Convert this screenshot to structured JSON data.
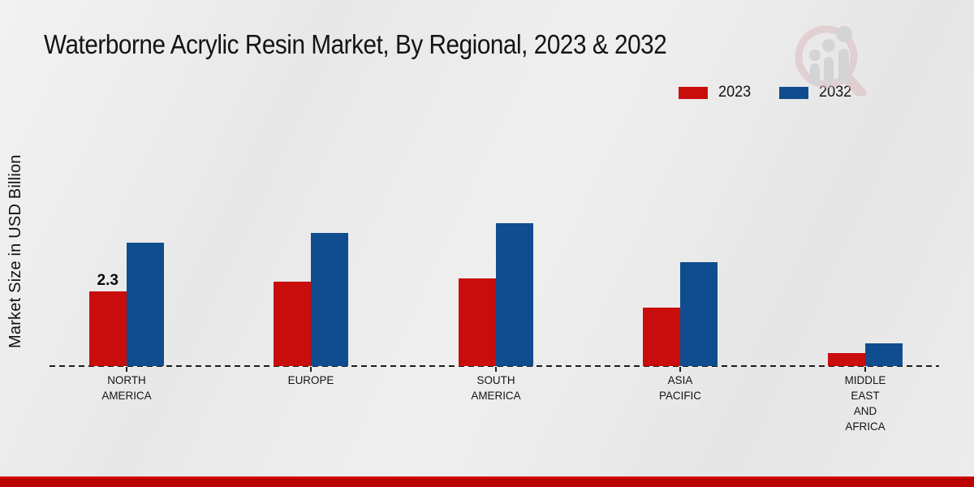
{
  "header": {
    "title": "Waterborne Acrylic Resin Market, By Regional, 2023 & 2032"
  },
  "axis": {
    "y_label": "Market Size in USD Billion"
  },
  "legend": {
    "items": [
      {
        "label": "2023",
        "color": "#c90c0c"
      },
      {
        "label": "2032",
        "color": "#0f4d8e"
      }
    ]
  },
  "watermark_icon": "magnifier-bar-chart-logo",
  "colors": {
    "series_2023": "#c90c0c",
    "series_2032": "#0f4d8e",
    "baseline": "#1c1c1c",
    "footer_bar": "#ba0403",
    "background": "#eaeaea"
  },
  "chart_data": {
    "type": "bar",
    "title": "Waterborne Acrylic Resin Market, By Regional, 2023 & 2032",
    "xlabel": "",
    "ylabel": "Market Size in USD Billion",
    "categories": [
      "NORTH AMERICA",
      "EUROPE",
      "SOUTH AMERICA",
      "ASIA PACIFIC",
      "MIDDLE EAST AND AFRICA"
    ],
    "category_label_lines": [
      [
        "NORTH",
        "AMERICA"
      ],
      [
        "EUROPE"
      ],
      [
        "SOUTH",
        "AMERICA"
      ],
      [
        "ASIA",
        "PACIFIC"
      ],
      [
        "MIDDLE",
        "EAST",
        "AND",
        "AFRICA"
      ]
    ],
    "series": [
      {
        "name": "2023",
        "color": "#c90c0c",
        "values": [
          2.3,
          2.6,
          2.7,
          1.8,
          0.4
        ]
      },
      {
        "name": "2032",
        "color": "#0f4d8e",
        "values": [
          3.8,
          4.1,
          4.4,
          3.2,
          0.7
        ]
      }
    ],
    "value_labels": [
      {
        "series": "2023",
        "category_index": 0,
        "text": "2.3"
      }
    ],
    "ylim": [
      0,
      5
    ],
    "grid": false,
    "legend_position": "top-right",
    "baseline_style": "dashed",
    "units": "USD Billion"
  }
}
